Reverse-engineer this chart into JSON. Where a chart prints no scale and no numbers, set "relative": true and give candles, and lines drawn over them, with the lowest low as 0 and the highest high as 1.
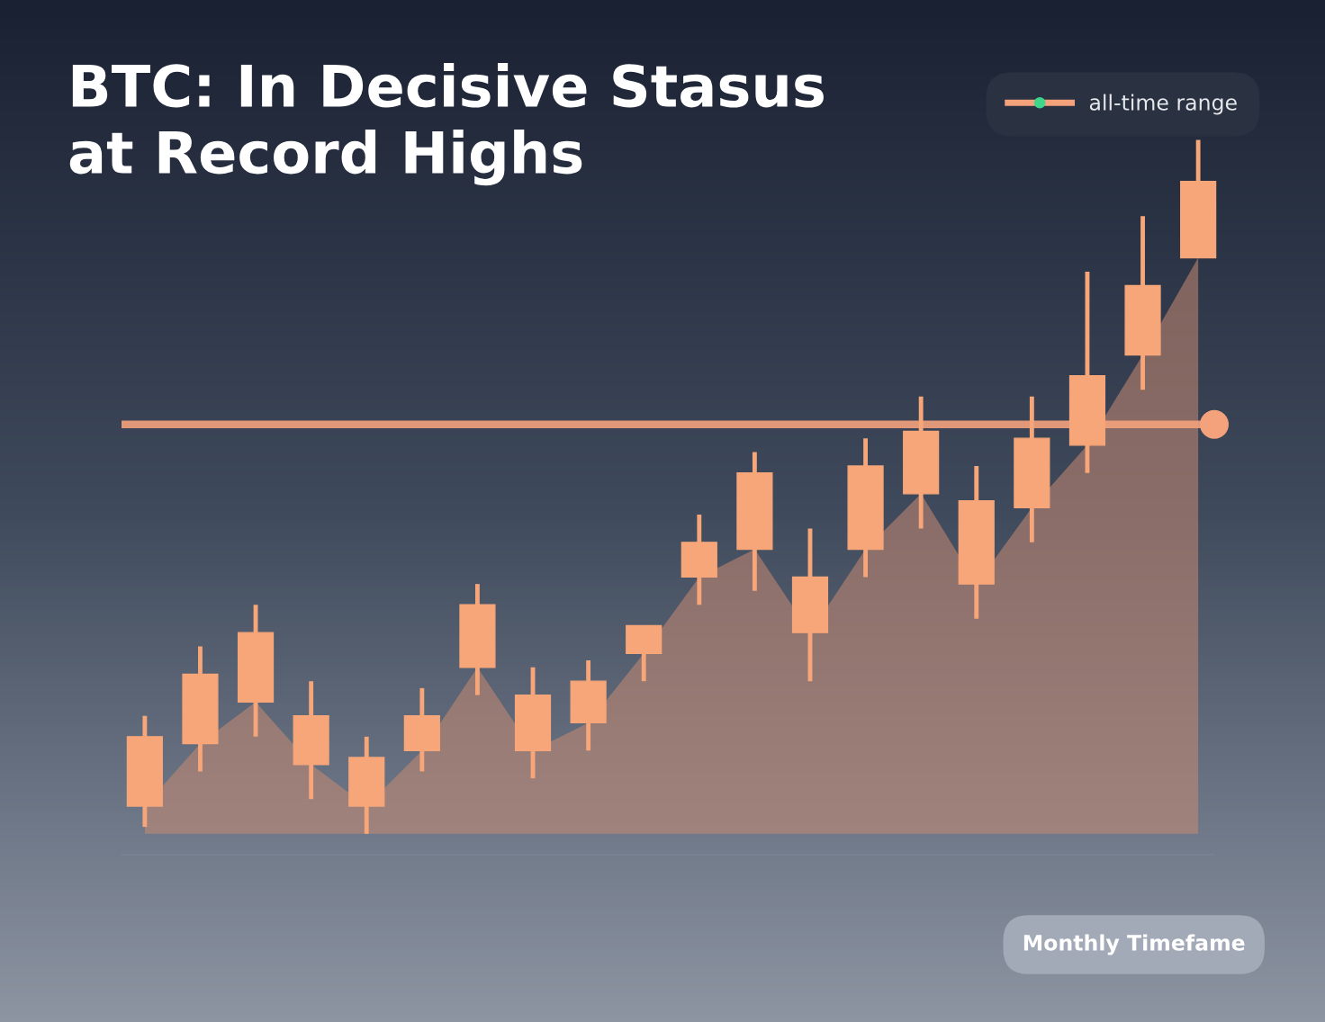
{
  "chart_data": {
    "type": "candlestick",
    "title": "BTC: In Decisive Stasus\nat Record Highs",
    "categories": [
      null,
      null,
      null,
      null,
      null,
      null,
      null,
      null,
      null,
      null,
      null,
      null,
      null,
      null,
      null,
      null,
      null,
      null,
      null,
      null
    ],
    "relative": true,
    "ohlc": [
      [
        0.04,
        0.17,
        0.01,
        0.14
      ],
      [
        0.13,
        0.27,
        0.09,
        0.23
      ],
      [
        0.19,
        0.33,
        0.14,
        0.29
      ],
      [
        0.1,
        0.22,
        0.05,
        0.17
      ],
      [
        0.04,
        0.14,
        0.0,
        0.11
      ],
      [
        0.12,
        0.21,
        0.09,
        0.17
      ],
      [
        0.24,
        0.36,
        0.2,
        0.33
      ],
      [
        0.12,
        0.24,
        0.08,
        0.2
      ],
      [
        0.16,
        0.25,
        0.12,
        0.22
      ],
      [
        0.26,
        0.3,
        0.22,
        0.3
      ],
      [
        0.37,
        0.46,
        0.33,
        0.42
      ],
      [
        0.41,
        0.55,
        0.35,
        0.52
      ],
      [
        0.29,
        0.44,
        0.22,
        0.37
      ],
      [
        0.41,
        0.57,
        0.37,
        0.53
      ],
      [
        0.49,
        0.63,
        0.44,
        0.58
      ],
      [
        0.36,
        0.53,
        0.31,
        0.48
      ],
      [
        0.47,
        0.63,
        0.42,
        0.57
      ],
      [
        0.56,
        0.81,
        0.52,
        0.66
      ],
      [
        0.69,
        0.89,
        0.64,
        0.79
      ],
      [
        0.83,
        1.0,
        0.83,
        0.94
      ]
    ],
    "color": "#f6a679",
    "series": [
      {
        "type": "area",
        "color": "#c98a72",
        "values": [
          0.04,
          0.13,
          0.19,
          0.1,
          0.04,
          0.12,
          0.24,
          0.12,
          0.16,
          0.26,
          0.37,
          0.41,
          0.29,
          0.41,
          0.49,
          0.36,
          0.47,
          0.56,
          0.69,
          0.83
        ]
      }
    ],
    "ref_lines": [
      {
        "axis": "y",
        "value": 0.59,
        "label": "all-time range",
        "color": "#f4a27c"
      }
    ],
    "legend": "top right",
    "annotations": [
      "Monthly Timefame"
    ]
  }
}
